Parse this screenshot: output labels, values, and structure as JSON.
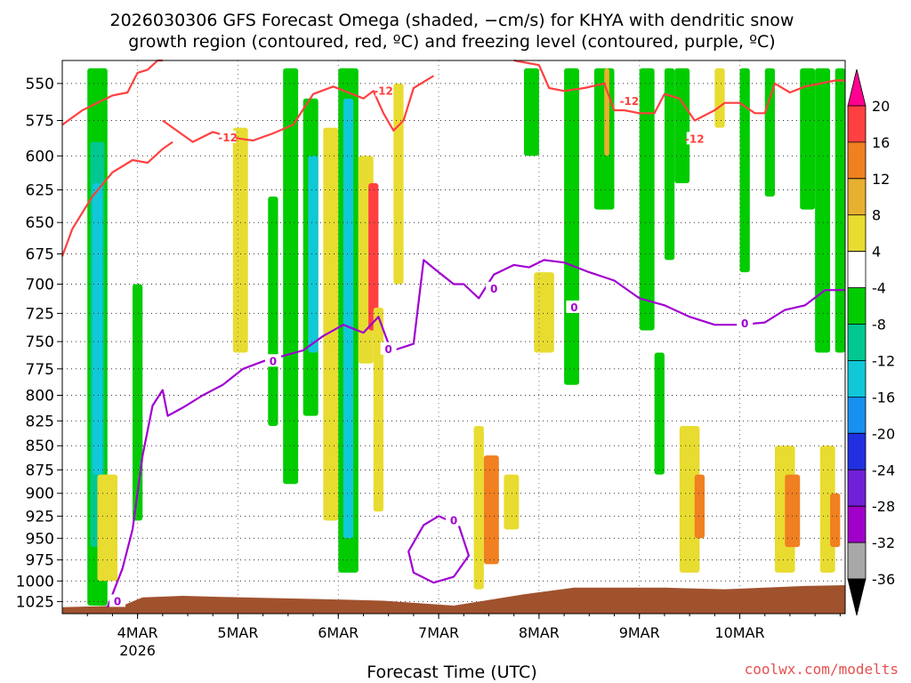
{
  "chart_data": {
    "type": "heatmap",
    "title_lines": [
      "2026030306 GFS Forecast Omega (shaded, −cm/s) for KHYA with dendritic snow",
      "growth region (contoured, red, ºC) and freezing level (contoured, purple, ºC)"
    ],
    "xlabel": "Forecast Time (UTC)",
    "credit": "coolwx.com/modelts",
    "x_ticks": [
      {
        "label": "4MAR",
        "sub": "2026",
        "t": 0.75
      },
      {
        "label": "5MAR",
        "sub": "",
        "t": 1.75
      },
      {
        "label": "6MAR",
        "sub": "",
        "t": 2.75
      },
      {
        "label": "7MAR",
        "sub": "",
        "t": 3.75
      },
      {
        "label": "8MAR",
        "sub": "",
        "t": 4.75
      },
      {
        "label": "9MAR",
        "sub": "",
        "t": 5.75
      },
      {
        "label": "10MAR",
        "sub": "",
        "t": 6.75
      }
    ],
    "x_range_days": [
      0,
      7.8
    ],
    "y_ticks": [
      550,
      575,
      600,
      625,
      650,
      675,
      700,
      725,
      750,
      775,
      800,
      825,
      850,
      875,
      900,
      925,
      950,
      975,
      1000,
      1025
    ],
    "y_range_hpa": [
      1040,
      535
    ],
    "y_scale": "log",
    "colorbar": {
      "labels": [
        20,
        16,
        12,
        8,
        4,
        -4,
        -8,
        -12,
        -16,
        -20,
        -24,
        -28,
        -32,
        -36
      ],
      "colors": [
        "#ff0090",
        "#ff4040",
        "#f08020",
        "#e8b030",
        "#e8dc30",
        "#ffffff",
        "#00cc00",
        "#00c890",
        "#10c8d8",
        "#1890f0",
        "#2030e0",
        "#7020d8",
        "#a000c8",
        "#a8a8a8",
        "#000000"
      ]
    },
    "terrain_color": "#a0522d",
    "dgz_color": "#ff4040",
    "freezing_color": "#a000d0",
    "freezing_label": "0",
    "dgz_label": "-12",
    "dgz_upper_hpa": [
      [
        0.0,
        578
      ],
      [
        0.2,
        568
      ],
      [
        0.5,
        558
      ],
      [
        0.65,
        556
      ],
      [
        0.75,
        543
      ],
      [
        0.85,
        541
      ],
      [
        0.95,
        535
      ],
      [
        1.0,
        535
      ]
    ],
    "dgz_main_hpa": [
      [
        1.0,
        575
      ],
      [
        1.3,
        590
      ],
      [
        1.5,
        583
      ],
      [
        1.7,
        587
      ],
      [
        1.9,
        589
      ],
      [
        2.1,
        584
      ],
      [
        2.3,
        578
      ],
      [
        2.5,
        557
      ],
      [
        2.7,
        552
      ],
      [
        2.85,
        556
      ],
      [
        3.0,
        560
      ],
      [
        3.1,
        555
      ],
      [
        3.2,
        570
      ],
      [
        3.3,
        582
      ],
      [
        3.4,
        575
      ],
      [
        3.5,
        553
      ],
      [
        3.7,
        545
      ]
    ],
    "dgz_right_hpa": [
      [
        4.5,
        535
      ],
      [
        4.75,
        538
      ],
      [
        4.85,
        553
      ],
      [
        5.0,
        555
      ],
      [
        5.2,
        553
      ],
      [
        5.4,
        550
      ],
      [
        5.5,
        568
      ],
      [
        5.6,
        568
      ],
      [
        5.75,
        570
      ],
      [
        5.9,
        570
      ],
      [
        6.0,
        557
      ],
      [
        6.15,
        560
      ],
      [
        6.3,
        575
      ],
      [
        6.5,
        568
      ],
      [
        6.6,
        563
      ],
      [
        6.75,
        563
      ],
      [
        6.9,
        570
      ],
      [
        7.0,
        570
      ],
      [
        7.1,
        550
      ],
      [
        7.25,
        556
      ],
      [
        7.4,
        552
      ],
      [
        7.55,
        550
      ],
      [
        7.7,
        548
      ],
      [
        7.8,
        548
      ]
    ],
    "dgz_low_hpa": [
      [
        0.0,
        677
      ],
      [
        0.1,
        655
      ],
      [
        0.3,
        630
      ],
      [
        0.5,
        612
      ],
      [
        0.7,
        603
      ],
      [
        0.85,
        605
      ],
      [
        1.0,
        595
      ],
      [
        1.1,
        590
      ]
    ],
    "freezing_main_hpa": [
      [
        0.45,
        1032
      ],
      [
        0.6,
        985
      ],
      [
        0.7,
        940
      ],
      [
        0.8,
        860
      ],
      [
        0.9,
        810
      ],
      [
        1.0,
        795
      ],
      [
        1.05,
        820
      ],
      [
        1.2,
        812
      ],
      [
        1.4,
        800
      ],
      [
        1.6,
        790
      ],
      [
        1.8,
        775
      ],
      [
        2.0,
        768
      ],
      [
        2.2,
        763
      ],
      [
        2.4,
        758
      ],
      [
        2.6,
        745
      ],
      [
        2.8,
        735
      ],
      [
        3.0,
        742
      ],
      [
        3.15,
        728
      ],
      [
        3.25,
        752
      ],
      [
        3.3,
        758
      ]
    ],
    "freezing_upper_hpa": [
      [
        3.3,
        758
      ],
      [
        3.5,
        752
      ],
      [
        3.6,
        680
      ],
      [
        3.75,
        690
      ],
      [
        3.9,
        700
      ],
      [
        4.0,
        700
      ],
      [
        4.15,
        712
      ],
      [
        4.3,
        692
      ],
      [
        4.5,
        684
      ],
      [
        4.65,
        686
      ],
      [
        4.8,
        680
      ],
      [
        5.0,
        682
      ],
      [
        5.25,
        690
      ],
      [
        5.5,
        697
      ],
      [
        5.75,
        712
      ],
      [
        6.0,
        718
      ],
      [
        6.25,
        728
      ],
      [
        6.5,
        735
      ],
      [
        6.75,
        735
      ],
      [
        7.0,
        733
      ],
      [
        7.2,
        722
      ],
      [
        7.4,
        718
      ],
      [
        7.6,
        705
      ],
      [
        7.8,
        705
      ]
    ],
    "freezing_loop_hpa": [
      [
        3.75,
        925
      ],
      [
        3.6,
        935
      ],
      [
        3.45,
        965
      ],
      [
        3.5,
        990
      ],
      [
        3.7,
        1002
      ],
      [
        3.9,
        995
      ],
      [
        4.05,
        970
      ],
      [
        3.95,
        935
      ],
      [
        3.75,
        925
      ]
    ],
    "omega_cells": [
      [
        0.25,
        0.45,
        540,
        1030,
        "#00cc00"
      ],
      [
        0.28,
        0.42,
        590,
        960,
        "#00c890"
      ],
      [
        0.3,
        0.4,
        620,
        880,
        "#10c8d8"
      ],
      [
        0.35,
        0.55,
        880,
        1000,
        "#e8dc30"
      ],
      [
        0.7,
        0.8,
        700,
        930,
        "#00cc00"
      ],
      [
        1.7,
        1.85,
        580,
        760,
        "#e8dc30"
      ],
      [
        2.05,
        2.15,
        630,
        830,
        "#00cc00"
      ],
      [
        2.2,
        2.35,
        540,
        890,
        "#00cc00"
      ],
      [
        2.4,
        2.55,
        560,
        820,
        "#00cc00"
      ],
      [
        2.45,
        2.55,
        600,
        760,
        "#10c8d8"
      ],
      [
        2.6,
        2.75,
        580,
        930,
        "#e8dc30"
      ],
      [
        2.75,
        2.95,
        540,
        990,
        "#00cc00"
      ],
      [
        2.8,
        2.9,
        560,
        950,
        "#10c8d8"
      ],
      [
        2.95,
        3.1,
        600,
        770,
        "#e8dc30"
      ],
      [
        3.05,
        3.15,
        620,
        740,
        "#ff4040"
      ],
      [
        3.1,
        3.2,
        720,
        920,
        "#e8dc30"
      ],
      [
        3.3,
        3.4,
        550,
        700,
        "#e8dc30"
      ],
      [
        4.1,
        4.2,
        830,
        1010,
        "#e8dc30"
      ],
      [
        4.2,
        4.35,
        860,
        980,
        "#f08020"
      ],
      [
        4.4,
        4.55,
        880,
        940,
        "#e8dc30"
      ],
      [
        4.6,
        4.75,
        540,
        600,
        "#00cc00"
      ],
      [
        4.7,
        4.9,
        690,
        760,
        "#e8dc30"
      ],
      [
        5.0,
        5.15,
        540,
        790,
        "#00cc00"
      ],
      [
        5.3,
        5.5,
        540,
        640,
        "#00cc00"
      ],
      [
        5.4,
        5.45,
        540,
        600,
        "#e8b030"
      ],
      [
        5.75,
        5.9,
        540,
        740,
        "#00cc00"
      ],
      [
        5.9,
        6.0,
        760,
        880,
        "#00cc00"
      ],
      [
        6.0,
        6.1,
        540,
        680,
        "#00cc00"
      ],
      [
        6.1,
        6.25,
        540,
        620,
        "#00cc00"
      ],
      [
        6.15,
        6.35,
        830,
        990,
        "#e8dc30"
      ],
      [
        6.3,
        6.4,
        880,
        950,
        "#f08020"
      ],
      [
        6.5,
        6.6,
        540,
        580,
        "#e8dc30"
      ],
      [
        6.75,
        6.85,
        540,
        690,
        "#00cc00"
      ],
      [
        7.0,
        7.1,
        540,
        630,
        "#00cc00"
      ],
      [
        7.1,
        7.3,
        850,
        990,
        "#e8dc30"
      ],
      [
        7.2,
        7.35,
        880,
        960,
        "#f08020"
      ],
      [
        7.35,
        7.5,
        540,
        640,
        "#00cc00"
      ],
      [
        7.5,
        7.65,
        540,
        760,
        "#00cc00"
      ],
      [
        7.55,
        7.7,
        850,
        990,
        "#e8dc30"
      ],
      [
        7.65,
        7.75,
        900,
        960,
        "#f08020"
      ],
      [
        7.7,
        7.8,
        540,
        760,
        "#00cc00"
      ]
    ],
    "terrain_top_hpa": [
      [
        0.0,
        1032
      ],
      [
        0.6,
        1030
      ],
      [
        0.8,
        1020
      ],
      [
        1.2,
        1018
      ],
      [
        1.8,
        1020
      ],
      [
        2.6,
        1022
      ],
      [
        3.2,
        1024
      ],
      [
        3.9,
        1030
      ],
      [
        4.6,
        1016
      ],
      [
        5.1,
        1008
      ],
      [
        6.0,
        1008
      ],
      [
        6.6,
        1010
      ],
      [
        7.4,
        1006
      ],
      [
        7.8,
        1005
      ]
    ]
  }
}
